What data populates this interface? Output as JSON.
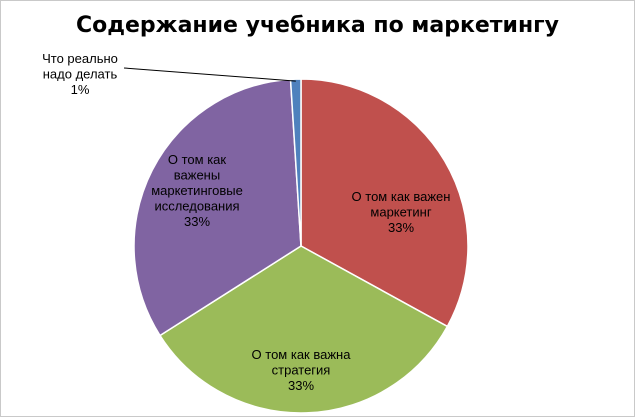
{
  "chart_data": {
    "type": "pie",
    "title": "Содержание учебника по маркетингу",
    "slices": [
      {
        "label_lines": [
          "О том как важен",
          "маркетинг",
          "33%"
        ],
        "value": 33,
        "color": "#C0504D"
      },
      {
        "label_lines": [
          "О том как важна",
          "стратегия",
          "33%"
        ],
        "value": 33,
        "color": "#9BBB59"
      },
      {
        "label_lines": [
          "О том как",
          "важены",
          "маркетинговые",
          "исследования",
          "33%"
        ],
        "value": 33,
        "color": "#8064A2"
      },
      {
        "label_lines": [
          "Что реально",
          "надо делать",
          "1%"
        ],
        "value": 1,
        "color": "#4F81BD"
      }
    ]
  }
}
